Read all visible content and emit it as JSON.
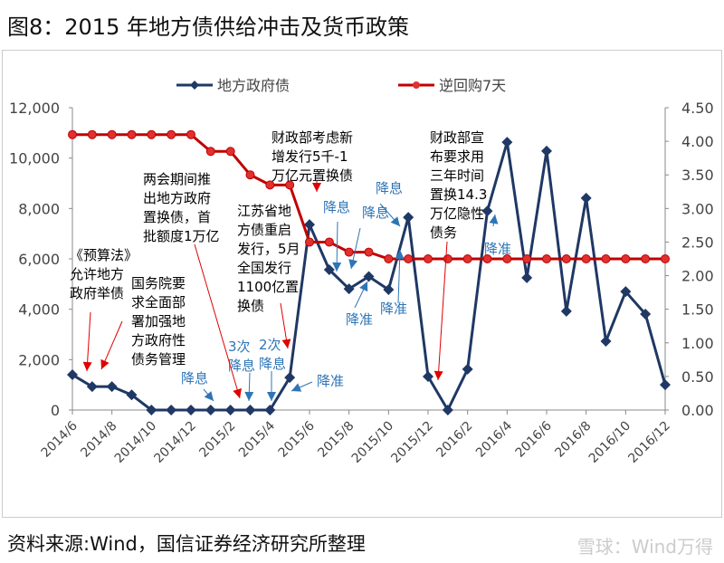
{
  "title": "图8：2015 年地方债供给冲击及货币政策",
  "footer": "资料来源:Wind，国信证券经济研究所整理",
  "watermark": "雪球：Wind万得",
  "chart_data": {
    "type": "line",
    "categories": [
      "2014/6",
      "2014/7",
      "2014/8",
      "2014/9",
      "2014/10",
      "2014/11",
      "2014/12",
      "2015/1",
      "2015/2",
      "2015/3",
      "2015/4",
      "2015/5",
      "2015/6",
      "2015/7",
      "2015/8",
      "2015/9",
      "2015/10",
      "2015/11",
      "2015/12",
      "2016/1",
      "2016/2",
      "2016/3",
      "2016/4",
      "2016/5",
      "2016/6",
      "2016/7",
      "2016/8",
      "2016/9",
      "2016/10",
      "2016/11",
      "2016/12"
    ],
    "x_tick_labels": [
      "2014/6",
      "2014/8",
      "2014/10",
      "2014/12",
      "2015/2",
      "2015/4",
      "2015/6",
      "2015/8",
      "2015/10",
      "2015/12",
      "2016/2",
      "2016/4",
      "2016/6",
      "2016/8",
      "2016/10",
      "2016/12"
    ],
    "series": [
      {
        "name": "地方政府债",
        "axis": "left",
        "color": "#1f3864",
        "marker": "diamond",
        "values": [
          1400,
          930,
          930,
          600,
          0,
          0,
          0,
          0,
          0,
          0,
          0,
          1290,
          7360,
          5570,
          4810,
          5300,
          4780,
          7650,
          1330,
          0,
          1620,
          7900,
          10630,
          5250,
          10280,
          3920,
          8410,
          2730,
          4700,
          3810,
          1000
        ]
      },
      {
        "name": "逆回购7天",
        "axis": "right",
        "color": "#c00000",
        "marker": "circle",
        "values": [
          4.1,
          4.1,
          4.1,
          4.1,
          4.1,
          4.1,
          4.1,
          3.85,
          3.85,
          3.5,
          3.35,
          3.35,
          2.5,
          2.5,
          2.35,
          2.35,
          2.25,
          2.25,
          2.25,
          2.25,
          2.25,
          2.25,
          2.25,
          2.25,
          2.25,
          2.25,
          2.25,
          2.25,
          2.25,
          2.25,
          2.25
        ]
      }
    ],
    "y_left": {
      "ylim": [
        0,
        12000
      ],
      "ticks": [
        "0",
        "2,000",
        "4,000",
        "6,000",
        "8,000",
        "10,000",
        "12,000"
      ]
    },
    "y_right": {
      "ylim": [
        0,
        4.5
      ],
      "ticks": [
        "0.00",
        "0.50",
        "1.00",
        "1.50",
        "2.00",
        "2.50",
        "3.00",
        "3.50",
        "4.00",
        "4.50"
      ]
    },
    "legend_position": "top",
    "annotations": [
      {
        "text": [
          "《预算法》",
          "允许地方",
          "政府举债"
        ],
        "color": "#000"
      },
      {
        "text": [
          "国务院要",
          "求全面部",
          "署加强地",
          "方政府性",
          "债务管理"
        ],
        "color": "#000"
      },
      {
        "text": [
          "两会期间推",
          "出地方政府",
          "置换债，首",
          "批额度1万亿"
        ],
        "color": "#000"
      },
      {
        "text": [
          "江苏省地",
          "方债重启",
          "发行，5月",
          "全国发行",
          "1100亿置",
          "换债"
        ],
        "color": "#000"
      },
      {
        "text": [
          "财政部考虑新",
          "增发行5千-1",
          "万亿元置换债"
        ],
        "color": "#000"
      },
      {
        "text": [
          "财政部宣",
          "布要求用",
          "三年时间",
          "置换14.3",
          "万亿隐性",
          "债务"
        ],
        "color": "#000"
      },
      {
        "text": [
          "降息"
        ],
        "color": "#2e75b6"
      },
      {
        "text": [
          "3次",
          "降息"
        ],
        "color": "#2e75b6"
      },
      {
        "text": [
          "2次",
          "降息"
        ],
        "color": "#2e75b6"
      },
      {
        "text": [
          "降准"
        ],
        "color": "#2e75b6"
      },
      {
        "text": [
          "降息"
        ],
        "color": "#2e75b6"
      },
      {
        "text": [
          "降息"
        ],
        "color": "#2e75b6"
      },
      {
        "text": [
          "降息"
        ],
        "color": "#2e75b6"
      },
      {
        "text": [
          "降准"
        ],
        "color": "#2e75b6"
      },
      {
        "text": [
          "降准"
        ],
        "color": "#2e75b6"
      },
      {
        "text": [
          "降准"
        ],
        "color": "#2e75b6"
      }
    ]
  }
}
